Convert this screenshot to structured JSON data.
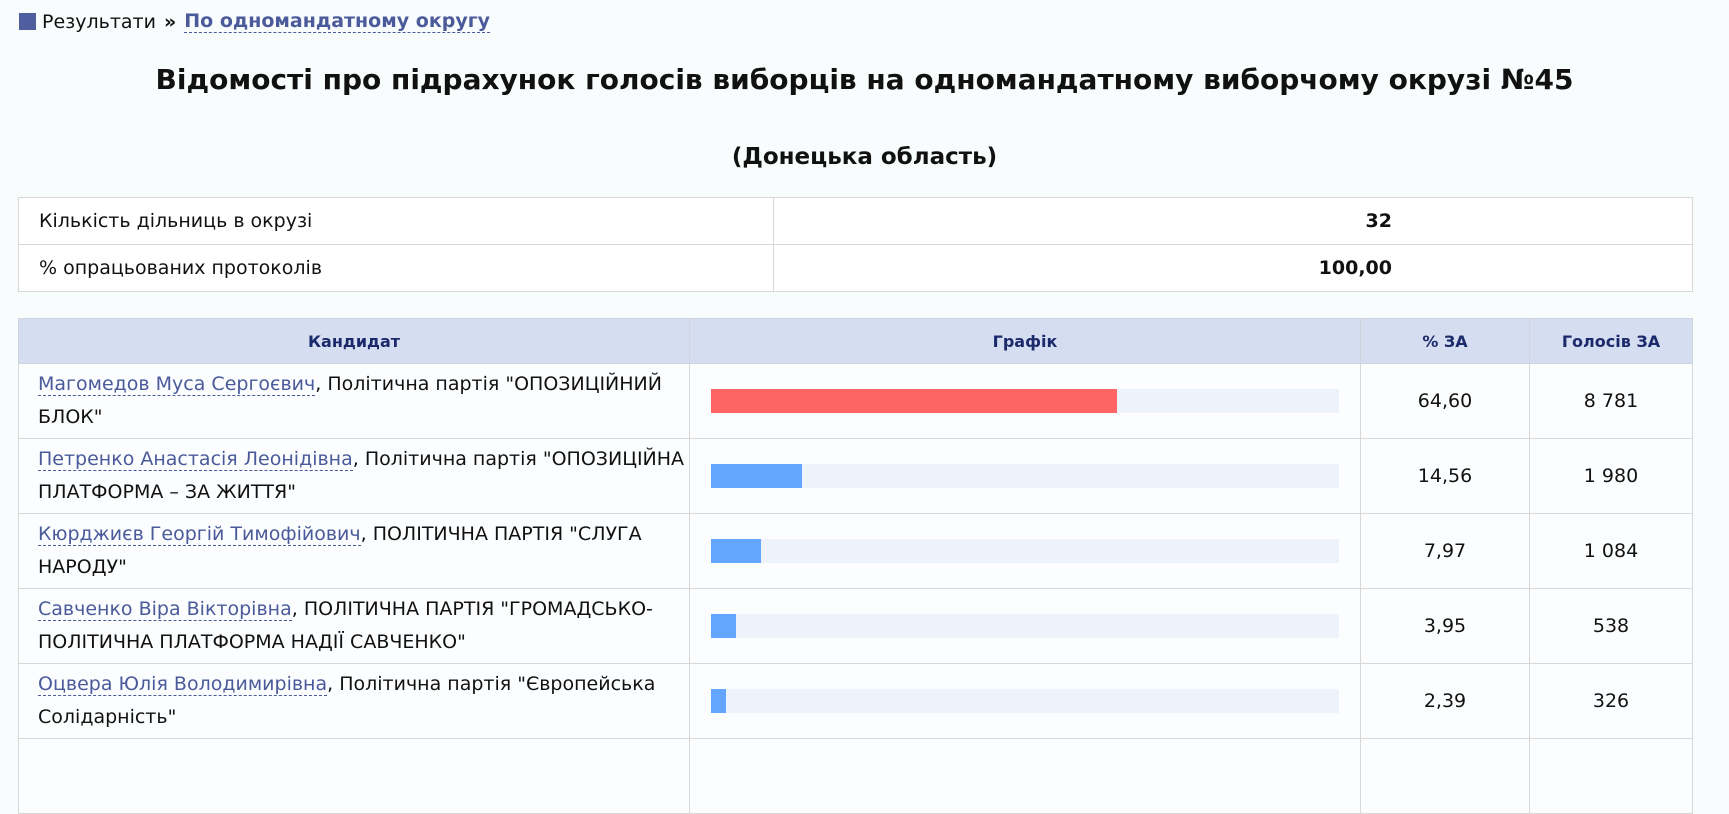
{
  "breadcrumb": {
    "root": "Результати",
    "current": "По одномандатному округу"
  },
  "title": "Відомості про підрахунок голосів виборців на одномандатному виборчому окрузі №45",
  "subtitle": "(Донецька область)",
  "info": [
    {
      "label": "Кількість дільниць в окрузі",
      "value": "32"
    },
    {
      "label": "% опрацьованих протоколів",
      "value": "100,00"
    }
  ],
  "columns": [
    "Кандидат",
    "Графік",
    "% ЗА",
    "Голосів ЗА"
  ],
  "colors": {
    "leader": "#ff6464",
    "other": "#64a6ff"
  },
  "rows": [
    {
      "name": "Магомедов Муса Сергоєвич",
      "party": ", Політична партія \"ОПОЗИЦІЙНИЙ БЛОК\"",
      "percent": "64,60",
      "pct": 64.6,
      "votes": "8 781"
    },
    {
      "name": "Петренко Анастасія Леонідівна",
      "party": ", Політична партія \"ОПОЗИЦІЙНА ПЛАТФОРМА – ЗА ЖИТТЯ\"",
      "percent": "14,56",
      "pct": 14.56,
      "votes": "1 980"
    },
    {
      "name": "Кюрджиєв Георгій Тимофійович",
      "party": ", ПОЛІТИЧНА ПАРТІЯ \"СЛУГА НАРОДУ\"",
      "percent": "7,97",
      "pct": 7.97,
      "votes": "1 084"
    },
    {
      "name": "Савченко Віра Вікторівна",
      "party": ", ПОЛІТИЧНА ПАРТІЯ \"ГРОМАДСЬКО-ПОЛІТИЧНА ПЛАТФОРМА НАДІЇ САВЧЕНКО\"",
      "percent": "3,95",
      "pct": 3.95,
      "votes": "538"
    },
    {
      "name": "Оцвера Юлія Володимирівна",
      "party": ", Політична партія \"Європейська Солідарність\"",
      "percent": "2,39",
      "pct": 2.39,
      "votes": "326"
    }
  ]
}
